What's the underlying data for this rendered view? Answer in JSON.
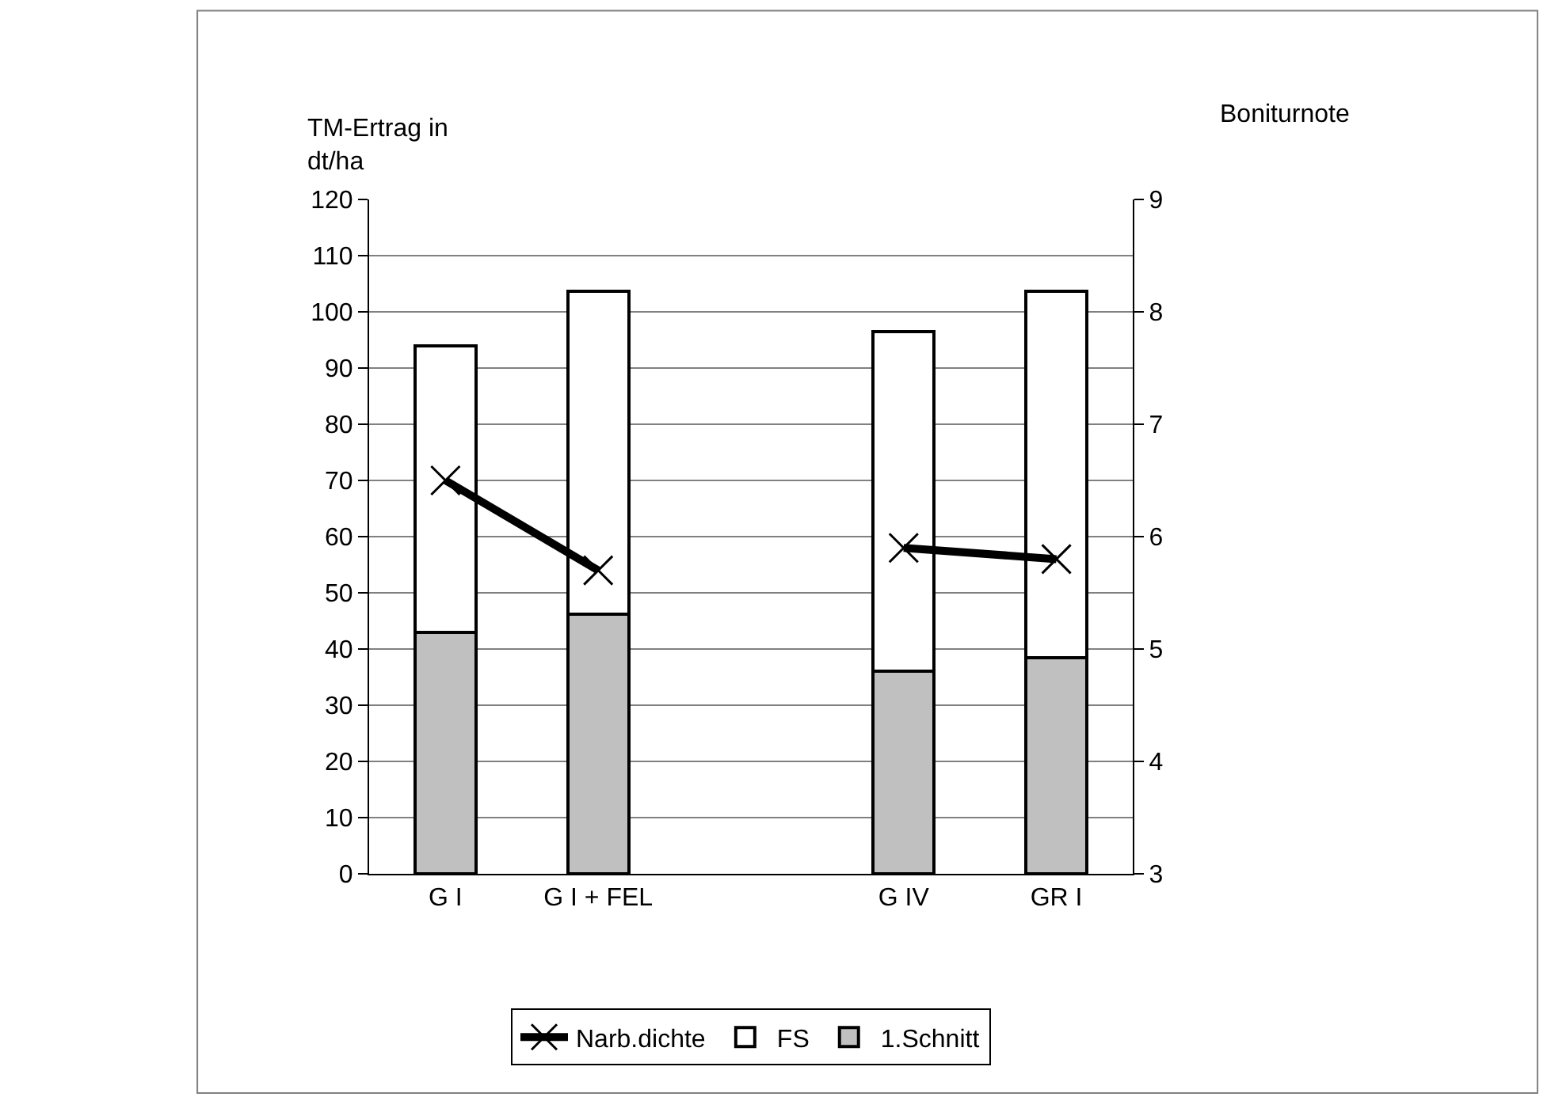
{
  "chart_data": {
    "type": "bar",
    "stacked": true,
    "ylabel": "TM-Ertrag in dt/ha",
    "y2label": "Boniturnote",
    "categories": [
      "G I",
      "G I + FEL",
      null,
      "G IV",
      "GR I"
    ],
    "series": [
      {
        "name": "1.Schnitt",
        "color": "#c0c0c0",
        "values": [
          43,
          46.2,
          null,
          36.1,
          38.4
        ]
      },
      {
        "name": "FS",
        "color": "#ffffff",
        "values": [
          51,
          57.4,
          null,
          60.4,
          65.2
        ]
      },
      {
        "name": "Narb.dichte",
        "type": "line",
        "axis": "y2",
        "color": "#000000",
        "marker": "cross",
        "line_style": "solid",
        "values": [
          6.5,
          5.7,
          null,
          5.9,
          5.8
        ]
      }
    ],
    "ylim": [
      0,
      120
    ],
    "yticks": [
      0,
      10,
      20,
      30,
      40,
      50,
      60,
      70,
      80,
      90,
      100,
      110,
      120
    ],
    "y2lim": [
      3,
      9
    ],
    "y2ticks": [
      3,
      4,
      5,
      6,
      7,
      8,
      9
    ],
    "grid": "y",
    "legend": "bottom"
  }
}
